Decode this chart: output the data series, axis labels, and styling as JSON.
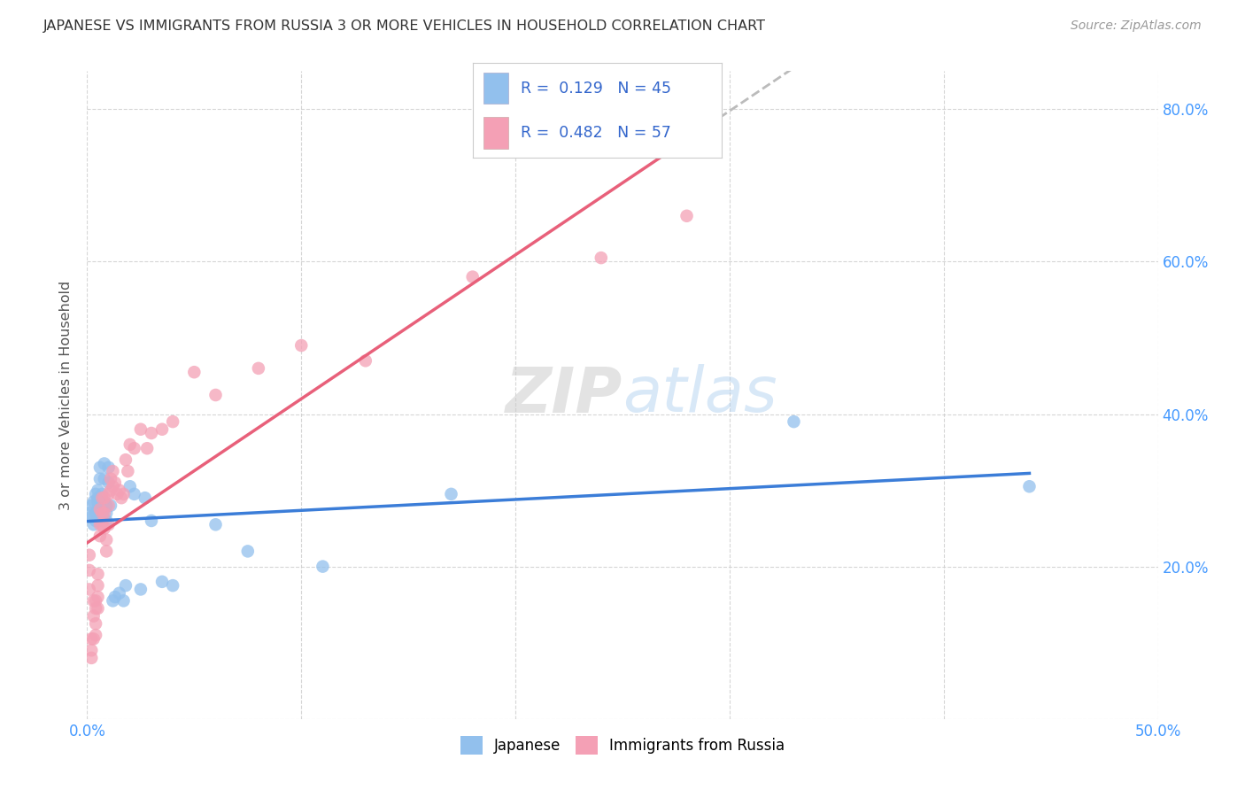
{
  "title": "JAPANESE VS IMMIGRANTS FROM RUSSIA 3 OR MORE VEHICLES IN HOUSEHOLD CORRELATION CHART",
  "source": "Source: ZipAtlas.com",
  "ylabel": "3 or more Vehicles in Household",
  "xlim": [
    0.0,
    0.5
  ],
  "ylim": [
    0.0,
    0.85
  ],
  "watermark": "ZIPatlas",
  "legend_label1": "R =  0.129   N = 45",
  "legend_label2": "R =  0.482   N = 57",
  "legend_series1": "Japanese",
  "legend_series2": "Immigrants from Russia",
  "color_japanese": "#92C0ED",
  "color_russia": "#F4A0B5",
  "color_line_japanese": "#3B7DD8",
  "color_line_russia": "#E8607A",
  "color_trend_dashed": "#BBBBBB",
  "japanese_x": [
    0.001,
    0.002,
    0.002,
    0.003,
    0.003,
    0.004,
    0.004,
    0.004,
    0.005,
    0.005,
    0.005,
    0.005,
    0.006,
    0.006,
    0.007,
    0.007,
    0.007,
    0.007,
    0.008,
    0.008,
    0.008,
    0.009,
    0.009,
    0.009,
    0.01,
    0.01,
    0.011,
    0.012,
    0.013,
    0.015,
    0.017,
    0.018,
    0.02,
    0.022,
    0.025,
    0.027,
    0.03,
    0.035,
    0.04,
    0.06,
    0.075,
    0.11,
    0.17,
    0.33,
    0.44
  ],
  "japanese_y": [
    0.27,
    0.28,
    0.265,
    0.285,
    0.255,
    0.295,
    0.27,
    0.26,
    0.29,
    0.3,
    0.285,
    0.275,
    0.33,
    0.315,
    0.295,
    0.285,
    0.27,
    0.26,
    0.285,
    0.335,
    0.315,
    0.28,
    0.27,
    0.26,
    0.33,
    0.31,
    0.28,
    0.155,
    0.16,
    0.165,
    0.155,
    0.175,
    0.305,
    0.295,
    0.17,
    0.29,
    0.26,
    0.18,
    0.175,
    0.255,
    0.22,
    0.2,
    0.295,
    0.39,
    0.305
  ],
  "russia_x": [
    0.001,
    0.001,
    0.001,
    0.002,
    0.002,
    0.002,
    0.003,
    0.003,
    0.003,
    0.004,
    0.004,
    0.004,
    0.004,
    0.005,
    0.005,
    0.005,
    0.005,
    0.006,
    0.006,
    0.006,
    0.007,
    0.007,
    0.007,
    0.008,
    0.008,
    0.008,
    0.009,
    0.009,
    0.01,
    0.01,
    0.01,
    0.011,
    0.011,
    0.012,
    0.012,
    0.013,
    0.014,
    0.015,
    0.016,
    0.017,
    0.018,
    0.019,
    0.02,
    0.022,
    0.025,
    0.028,
    0.03,
    0.035,
    0.04,
    0.05,
    0.06,
    0.08,
    0.1,
    0.13,
    0.18,
    0.24,
    0.28
  ],
  "russia_y": [
    0.215,
    0.195,
    0.17,
    0.105,
    0.09,
    0.08,
    0.155,
    0.135,
    0.105,
    0.155,
    0.145,
    0.125,
    0.11,
    0.19,
    0.175,
    0.16,
    0.145,
    0.275,
    0.255,
    0.24,
    0.29,
    0.27,
    0.255,
    0.29,
    0.27,
    0.25,
    0.235,
    0.22,
    0.295,
    0.28,
    0.255,
    0.315,
    0.3,
    0.325,
    0.305,
    0.31,
    0.295,
    0.3,
    0.29,
    0.295,
    0.34,
    0.325,
    0.36,
    0.355,
    0.38,
    0.355,
    0.375,
    0.38,
    0.39,
    0.455,
    0.425,
    0.46,
    0.49,
    0.47,
    0.58,
    0.605,
    0.66
  ]
}
